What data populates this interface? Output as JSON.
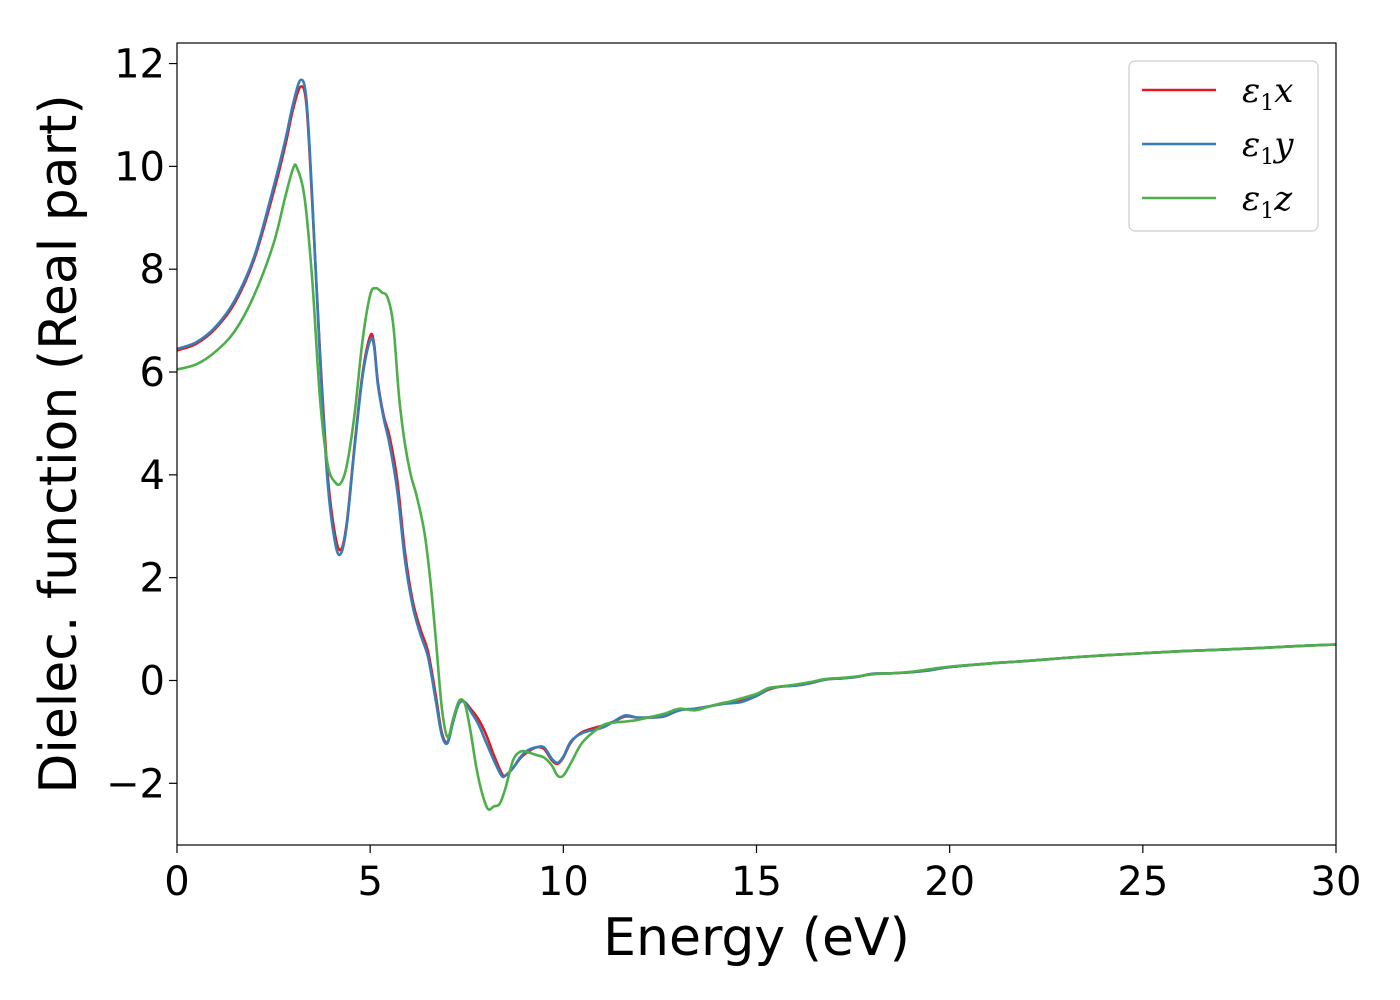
{
  "chart_data": {
    "type": "line",
    "title": "",
    "xlabel": "Energy (eV)",
    "ylabel": "Dielec. function (Real part)",
    "xlim": [
      0,
      30
    ],
    "ylim": [
      -3.2,
      12.4
    ],
    "xticks": [
      0,
      5,
      10,
      15,
      20,
      25,
      30
    ],
    "xtick_labels": [
      "0",
      "5",
      "10",
      "15",
      "20",
      "25",
      "30"
    ],
    "yticks": [
      -2,
      0,
      2,
      4,
      6,
      8,
      10,
      12
    ],
    "ytick_labels": [
      "−2",
      "0",
      "2",
      "4",
      "6",
      "8",
      "10",
      "12"
    ],
    "grid": false,
    "legend_position": "top-right",
    "series": [
      {
        "name": "ε₁x",
        "legend_base": "ε",
        "legend_sub": "1",
        "legend_var": "x",
        "color": "#e41a1c",
        "x": [
          0,
          0.5,
          1.0,
          1.5,
          2.0,
          2.5,
          2.8,
          3.0,
          3.2,
          3.35,
          3.5,
          3.7,
          3.9,
          4.1,
          4.25,
          4.4,
          4.6,
          4.8,
          5.0,
          5.1,
          5.2,
          5.35,
          5.5,
          5.7,
          5.9,
          6.1,
          6.3,
          6.5,
          6.7,
          6.85,
          7.0,
          7.15,
          7.3,
          7.45,
          7.6,
          7.8,
          8.0,
          8.2,
          8.4,
          8.5,
          8.7,
          8.9,
          9.1,
          9.3,
          9.5,
          9.7,
          9.85,
          10.0,
          10.2,
          10.5,
          11.0,
          11.3,
          11.6,
          11.9,
          12.2,
          12.6,
          13.0,
          13.4,
          13.8,
          14.2,
          14.6,
          15.0,
          15.3,
          15.6,
          16.0,
          16.4,
          16.8,
          17.2,
          17.6,
          18.0,
          18.5,
          19.0,
          19.5,
          20.0,
          21.0,
          22.0,
          23.0,
          24.0,
          25.0,
          26.0,
          27.0,
          28.0,
          29.0,
          30.0
        ],
        "y": [
          6.42,
          6.55,
          6.85,
          7.35,
          8.2,
          9.5,
          10.4,
          11.1,
          11.55,
          11.2,
          9.3,
          6.4,
          4.0,
          2.8,
          2.55,
          3.1,
          4.6,
          5.95,
          6.7,
          6.55,
          5.8,
          5.15,
          4.75,
          3.9,
          2.5,
          1.55,
          1.0,
          0.55,
          -0.3,
          -1.0,
          -1.2,
          -0.75,
          -0.42,
          -0.42,
          -0.55,
          -0.75,
          -1.05,
          -1.45,
          -1.8,
          -1.85,
          -1.7,
          -1.5,
          -1.38,
          -1.3,
          -1.33,
          -1.55,
          -1.62,
          -1.5,
          -1.2,
          -1.0,
          -0.88,
          -0.8,
          -0.7,
          -0.72,
          -0.72,
          -0.7,
          -0.58,
          -0.55,
          -0.5,
          -0.43,
          -0.4,
          -0.3,
          -0.18,
          -0.12,
          -0.1,
          -0.05,
          0.02,
          0.04,
          0.07,
          0.13,
          0.14,
          0.16,
          0.2,
          0.26,
          0.33,
          0.38,
          0.44,
          0.49,
          0.53,
          0.57,
          0.6,
          0.63,
          0.67,
          0.7
        ]
      },
      {
        "name": "ε₁y",
        "legend_base": "ε",
        "legend_sub": "1",
        "legend_var": "y",
        "color": "#377eb8",
        "x": [
          0,
          0.5,
          1.0,
          1.5,
          2.0,
          2.5,
          2.8,
          3.0,
          3.2,
          3.35,
          3.5,
          3.7,
          3.9,
          4.1,
          4.25,
          4.4,
          4.6,
          4.8,
          5.0,
          5.1,
          5.2,
          5.35,
          5.5,
          5.7,
          5.9,
          6.1,
          6.3,
          6.5,
          6.7,
          6.85,
          7.0,
          7.15,
          7.3,
          7.45,
          7.6,
          7.8,
          8.0,
          8.2,
          8.4,
          8.5,
          8.7,
          8.9,
          9.1,
          9.3,
          9.5,
          9.7,
          9.85,
          10.0,
          10.2,
          10.5,
          11.0,
          11.3,
          11.6,
          11.9,
          12.2,
          12.6,
          13.0,
          13.4,
          13.8,
          14.2,
          14.6,
          15.0,
          15.3,
          15.6,
          16.0,
          16.4,
          16.8,
          17.2,
          17.6,
          18.0,
          18.5,
          19.0,
          19.5,
          20.0,
          21.0,
          22.0,
          23.0,
          24.0,
          25.0,
          26.0,
          27.0,
          28.0,
          29.0,
          30.0
        ],
        "y": [
          6.45,
          6.58,
          6.88,
          7.4,
          8.25,
          9.6,
          10.5,
          11.2,
          11.68,
          11.3,
          9.4,
          6.3,
          3.85,
          2.65,
          2.48,
          3.05,
          4.55,
          5.9,
          6.62,
          6.5,
          5.75,
          5.1,
          4.6,
          3.7,
          2.35,
          1.45,
          0.9,
          0.45,
          -0.4,
          -1.05,
          -1.22,
          -0.8,
          -0.45,
          -0.42,
          -0.6,
          -0.85,
          -1.2,
          -1.55,
          -1.85,
          -1.85,
          -1.7,
          -1.48,
          -1.35,
          -1.3,
          -1.3,
          -1.52,
          -1.6,
          -1.48,
          -1.18,
          -1.02,
          -0.92,
          -0.8,
          -0.68,
          -0.72,
          -0.72,
          -0.7,
          -0.58,
          -0.55,
          -0.5,
          -0.45,
          -0.42,
          -0.3,
          -0.17,
          -0.12,
          -0.1,
          -0.05,
          0.02,
          0.04,
          0.07,
          0.13,
          0.14,
          0.16,
          0.2,
          0.26,
          0.33,
          0.38,
          0.44,
          0.49,
          0.53,
          0.57,
          0.6,
          0.63,
          0.67,
          0.7
        ]
      },
      {
        "name": "ε₁z",
        "legend_base": "ε",
        "legend_sub": "1",
        "legend_var": "z",
        "color": "#4daf4a",
        "x": [
          0,
          0.5,
          1.0,
          1.5,
          2.0,
          2.5,
          2.8,
          3.0,
          3.1,
          3.3,
          3.5,
          3.7,
          3.9,
          4.1,
          4.25,
          4.4,
          4.6,
          4.8,
          5.0,
          5.15,
          5.3,
          5.45,
          5.6,
          5.75,
          5.9,
          6.05,
          6.2,
          6.4,
          6.55,
          6.7,
          6.85,
          7.0,
          7.15,
          7.3,
          7.45,
          7.6,
          7.75,
          7.9,
          8.05,
          8.2,
          8.35,
          8.5,
          8.7,
          8.9,
          9.1,
          9.3,
          9.5,
          9.7,
          9.85,
          10.0,
          10.2,
          10.5,
          11.0,
          11.3,
          11.6,
          11.9,
          12.2,
          12.6,
          13.0,
          13.4,
          13.8,
          14.2,
          14.6,
          15.0,
          15.3,
          15.6,
          16.0,
          16.4,
          16.8,
          17.2,
          17.6,
          18.0,
          18.5,
          19.0,
          19.5,
          20.0,
          21.0,
          22.0,
          23.0,
          24.0,
          25.0,
          26.0,
          27.0,
          28.0,
          29.0,
          30.0
        ],
        "y": [
          6.05,
          6.15,
          6.4,
          6.8,
          7.5,
          8.5,
          9.4,
          9.95,
          9.98,
          9.4,
          7.8,
          5.5,
          4.2,
          3.85,
          3.85,
          4.2,
          5.2,
          6.6,
          7.5,
          7.63,
          7.55,
          7.45,
          6.9,
          5.5,
          4.6,
          4.0,
          3.6,
          2.9,
          2.0,
          0.8,
          -0.5,
          -1.1,
          -0.75,
          -0.4,
          -0.45,
          -1.0,
          -1.7,
          -2.2,
          -2.5,
          -2.45,
          -2.4,
          -2.1,
          -1.55,
          -1.38,
          -1.4,
          -1.45,
          -1.5,
          -1.65,
          -1.85,
          -1.85,
          -1.6,
          -1.2,
          -0.88,
          -0.82,
          -0.8,
          -0.77,
          -0.72,
          -0.65,
          -0.55,
          -0.58,
          -0.5,
          -0.43,
          -0.35,
          -0.26,
          -0.15,
          -0.12,
          -0.08,
          -0.03,
          0.03,
          0.05,
          0.08,
          0.12,
          0.14,
          0.17,
          0.22,
          0.27,
          0.33,
          0.38,
          0.44,
          0.49,
          0.53,
          0.57,
          0.6,
          0.63,
          0.67,
          0.7
        ]
      }
    ]
  }
}
